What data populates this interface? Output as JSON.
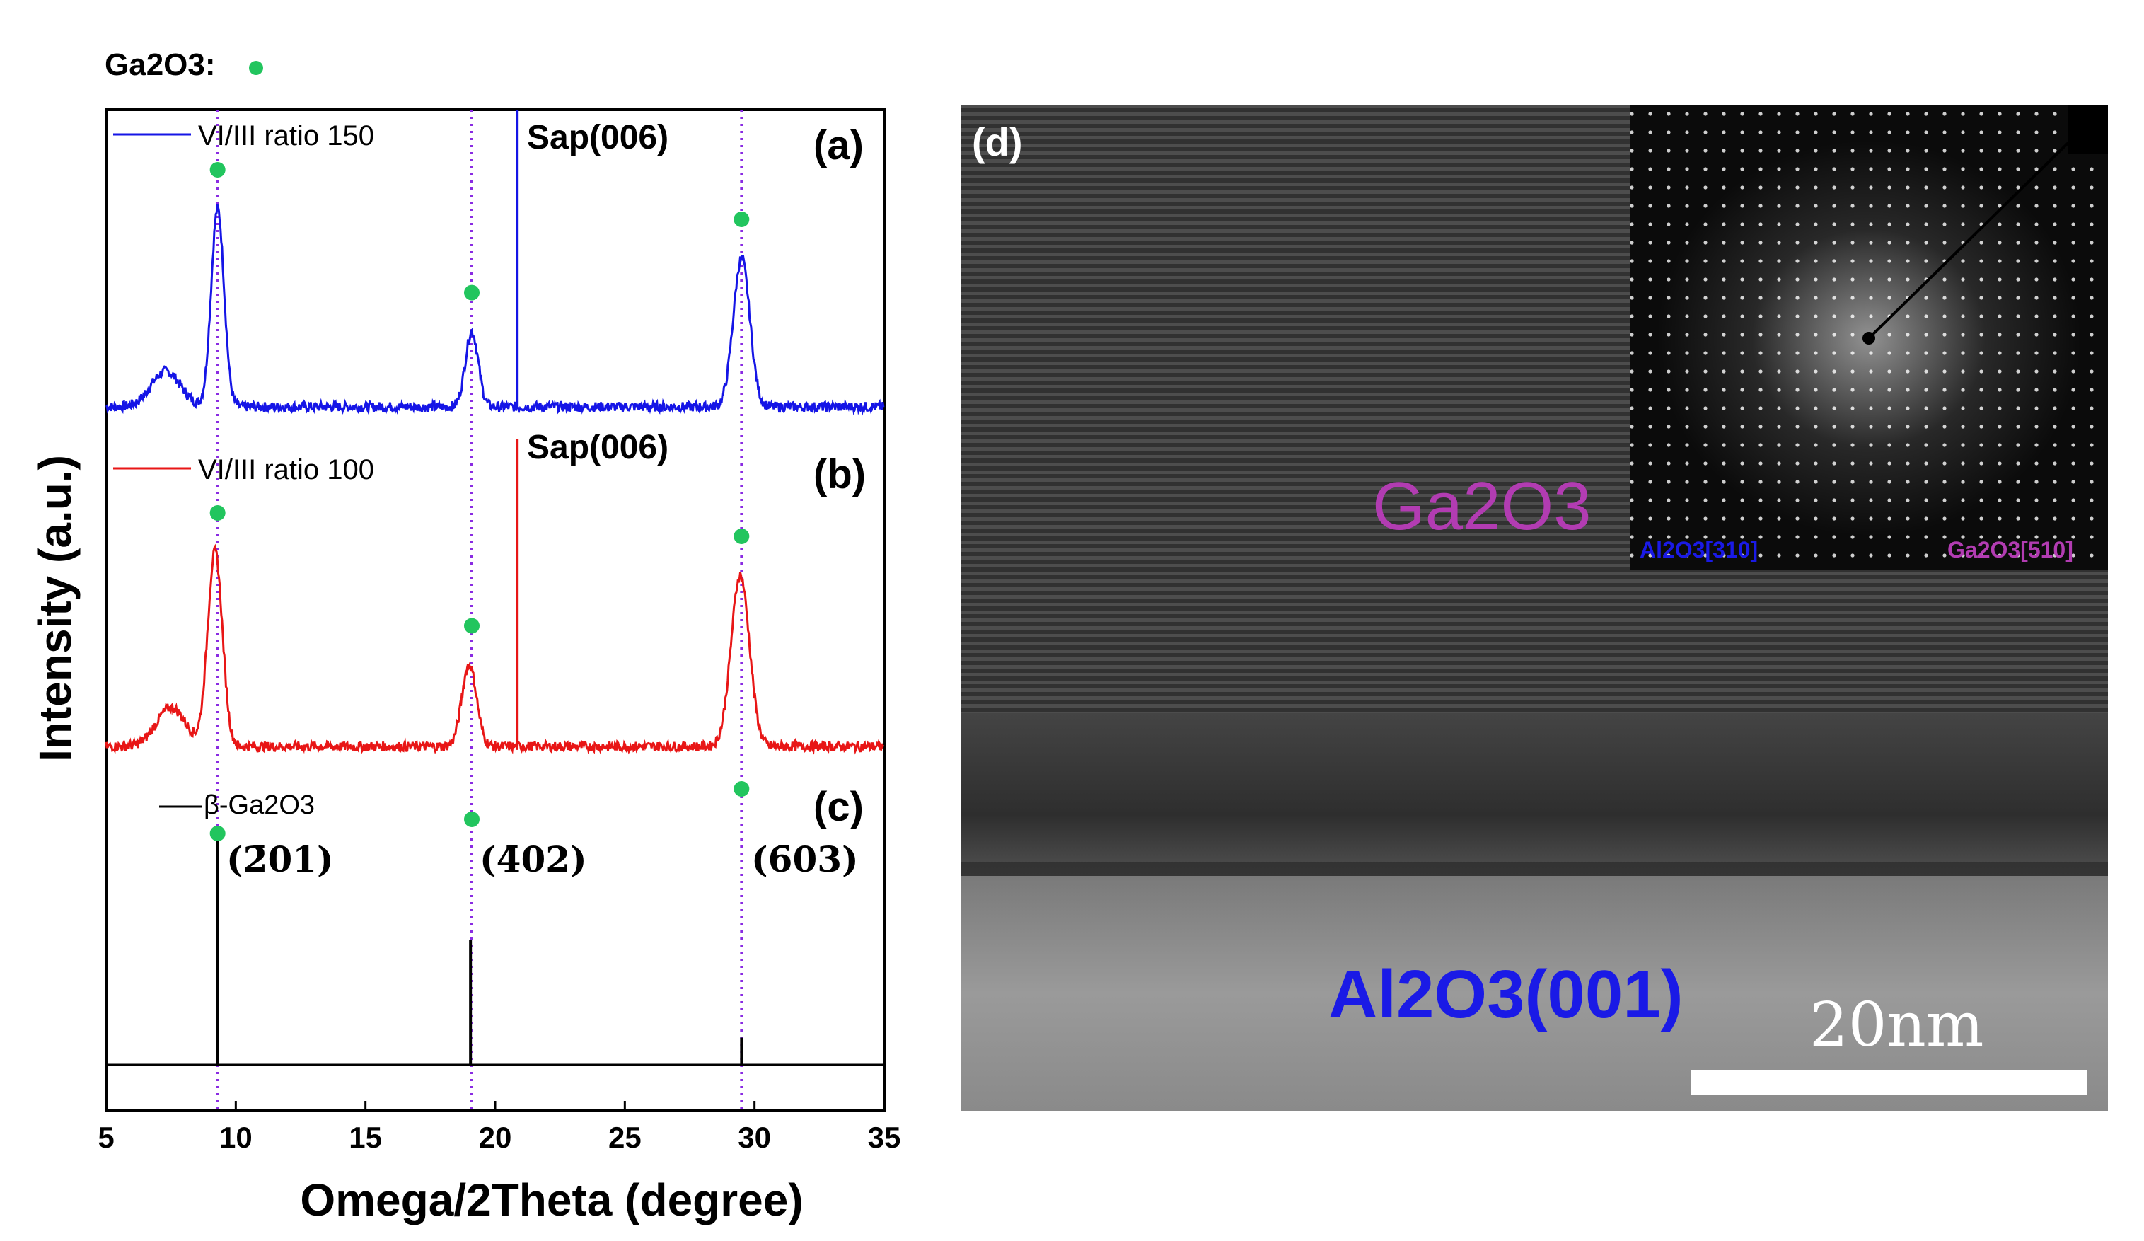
{
  "figure": {
    "legend_key": {
      "label": "Ga2O3:",
      "marker_color": "#22c55e"
    }
  },
  "chart_data": {
    "type": "line",
    "title": "",
    "xlabel": "Omega/2Theta (degree)",
    "ylabel": "Intensity (a.u.)",
    "xlim": [
      5,
      35
    ],
    "xticks": [
      5,
      10,
      15,
      20,
      25,
      30,
      35
    ],
    "grid": false,
    "reference_lines_2theta": [
      9.3,
      19.1,
      29.5
    ],
    "panels": [
      {
        "tag": "(a)",
        "legend": "VI/III ratio 150",
        "color": "#1515e6",
        "peak_annotation": "Sap(006)",
        "sapphire_peak": 20.85,
        "baseline": 0.0,
        "peaks": [
          {
            "x": 9.3,
            "height": 1.0,
            "width": 0.35
          },
          {
            "x": 19.1,
            "height": 0.38,
            "width": 0.35
          },
          {
            "x": 29.5,
            "height": 0.75,
            "width": 0.45
          }
        ],
        "bump": {
          "x": 7.3,
          "height": 0.18,
          "width": 0.8
        },
        "series_markers": [
          9.3,
          19.1,
          29.5
        ]
      },
      {
        "tag": "(b)",
        "legend": "VI/III ratio 100",
        "color": "#e81616",
        "peak_annotation": "Sap(006)",
        "sapphire_peak": 20.85,
        "baseline": 0.0,
        "peaks": [
          {
            "x": 9.2,
            "height": 1.0,
            "width": 0.4
          },
          {
            "x": 19.0,
            "height": 0.42,
            "width": 0.4
          },
          {
            "x": 29.45,
            "height": 0.88,
            "width": 0.5
          }
        ],
        "bump": {
          "x": 7.5,
          "height": 0.2,
          "width": 0.8
        },
        "series_markers": [
          9.3,
          19.1,
          29.5
        ]
      },
      {
        "tag": "(c)",
        "legend": "β-Ga2O3",
        "color": "#000000",
        "reflections": [
          {
            "x": 9.3,
            "label": "(2̄01)",
            "height": 1.0
          },
          {
            "x": 19.05,
            "label": "(4̄02)",
            "height": 0.55
          },
          {
            "x": 29.5,
            "label": "(6̄03)",
            "height": 0.12
          }
        ]
      }
    ]
  },
  "tem": {
    "panel_tag": "(d)",
    "film_label": "Ga2O3",
    "substrate_label": "Al2O3(001)",
    "scale_bar_label": "20nm",
    "inset_left_label": "Al2O3[310]",
    "inset_right_label": "Ga2O3[510]",
    "colors": {
      "film": "#b23cb2",
      "substrate": "#1a1ae6"
    }
  }
}
